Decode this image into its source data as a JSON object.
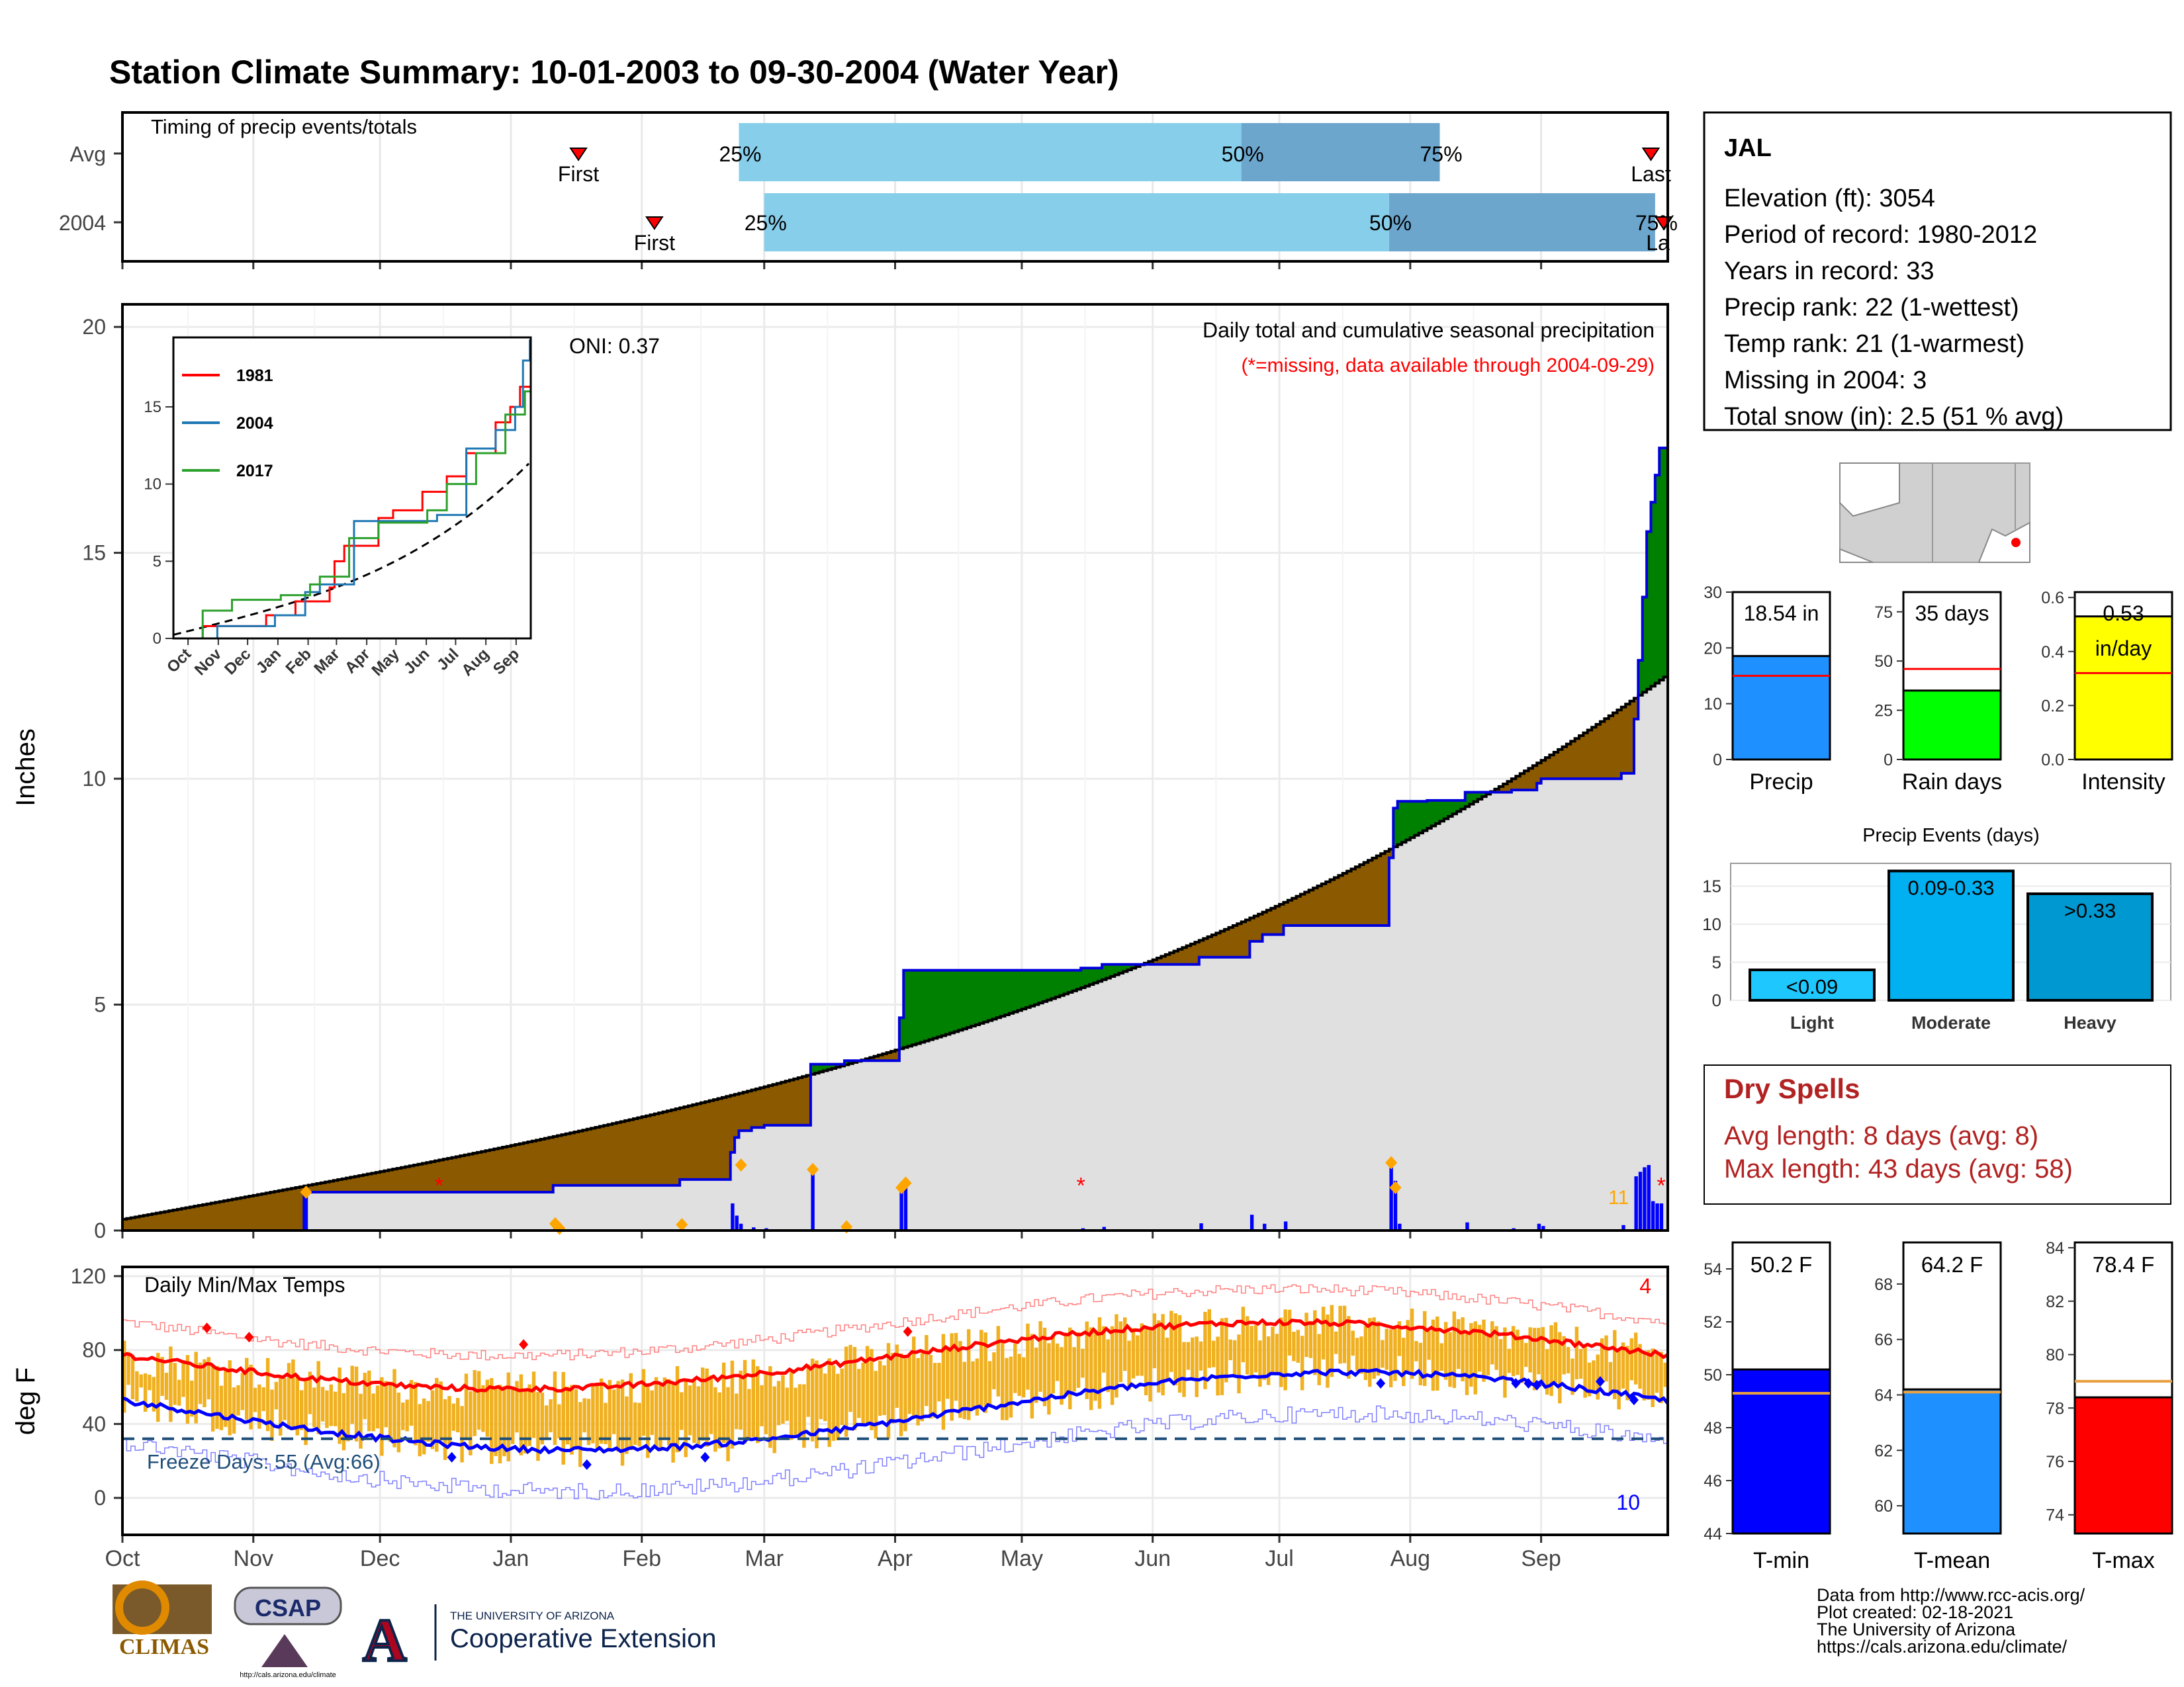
{
  "title": "Station Climate Summary: 10-01-2003 to 09-30-2004 (Water Year)",
  "colors": {
    "title": "#8b2500",
    "precip_cum": "#0000dd",
    "above_normal": "#008000",
    "below_normal": "#8b5a00",
    "normal_area": "#e0e0e0",
    "daily_bar": "#0000ff",
    "event_marker": "#ffa500",
    "temp_bar": "#f0b020",
    "tmax_line": "#ff0000",
    "tmin_line": "#0000ff",
    "freeze_line": "#1f4e79",
    "dry_spell_text": "#b22222"
  },
  "timing_panel": {
    "title": "Timing of precip events/totals",
    "rows": [
      {
        "label": "Avg",
        "first_label": "First",
        "last_label": "Last",
        "first_date": "2004-01-17",
        "last_date": "2004-09-27",
        "p25": "2004-02-24",
        "p50": "2004-06-22",
        "p75": "2004-08-08",
        "p25_label": "25%",
        "p50_label": "50%",
        "p75_label": "75%"
      },
      {
        "label": "2004",
        "first_label": "First",
        "last_label": "La",
        "first_date": "2004-02-04",
        "last_date": "2004-09-30",
        "p25": "2004-03-01",
        "p50": "2004-07-27",
        "p75": "2004-09-28",
        "p25_label": "25%",
        "p50_label": "50%",
        "p75_label": "75%"
      }
    ]
  },
  "precip_panel": {
    "ylabel": "Inches",
    "y_ticks": [
      0,
      5,
      10,
      15,
      20
    ],
    "ylim": [
      0,
      20.5
    ],
    "oni": "ONI: 0.37",
    "header": "Daily total and cumulative seasonal precipitation",
    "missing_note": "(*=missing, data available through 2004-09-29)",
    "missing_count": "11",
    "missing_marker": "*"
  },
  "inset": {
    "y_ticks": [
      0,
      5,
      10,
      15
    ],
    "x_labels": [
      "Oct",
      "Nov",
      "Dec",
      "Jan",
      "Feb",
      "Mar",
      "Apr",
      "May",
      "Jun",
      "Jul",
      "Aug",
      "Sep"
    ],
    "legend": [
      {
        "name": "1981",
        "color": "#ff0000"
      },
      {
        "name": "2004",
        "color": "#1f77b4"
      },
      {
        "name": "2017",
        "color": "#2ca02c"
      }
    ]
  },
  "temp_panel": {
    "title": "Daily Min/Max Temps",
    "ylabel": "deg F",
    "y_ticks": [
      0,
      40,
      80,
      120
    ],
    "ylim": [
      -20,
      125
    ],
    "freeze_label": "Freeze Days: 55 (Avg:66)",
    "freeze_line": 32,
    "record_high_count": "4",
    "record_low_count": "10"
  },
  "month_labels": [
    "Oct",
    "Nov",
    "Dec",
    "Jan",
    "Feb",
    "Mar",
    "Apr",
    "May",
    "Jun",
    "Jul",
    "Aug",
    "Sep"
  ],
  "station": {
    "name": "JAL",
    "lines": [
      "Elevation (ft): 3054",
      "Period of record: 1980-2012",
      "Years in record: 33",
      "Precip rank: 22 (1-wettest)",
      "Temp rank: 21 (1-warmest)",
      "Missing in 2004: 3",
      "Total snow (in): 2.5 (51 % avg)"
    ]
  },
  "mini_bars": [
    {
      "label": "Precip",
      "value": 18.54,
      "avg": 15.0,
      "ylim": [
        0,
        30
      ],
      "ticks": [
        "0",
        "10",
        "20",
        "30"
      ],
      "tick_values": [
        0,
        10,
        20,
        30
      ],
      "value_label": "18.54 in",
      "color": "#1e90ff"
    },
    {
      "label": "Rain days",
      "value": 35,
      "avg": 46,
      "ylim": [
        0,
        85
      ],
      "ticks": [
        "0",
        "25",
        "50",
        "75"
      ],
      "tick_values": [
        0,
        25,
        50,
        75
      ],
      "value_label": "35 days",
      "color": "#00ff00"
    },
    {
      "label": "Intensity",
      "value": 0.53,
      "avg": 0.32,
      "ylim": [
        0,
        0.62
      ],
      "ticks": [
        "0.0",
        "0.2",
        "0.4",
        "0.6"
      ],
      "tick_values": [
        0,
        0.2,
        0.4,
        0.6
      ],
      "value_label": "0.53",
      "value_label2": "in/day",
      "color": "#ffff00"
    }
  ],
  "precip_events": {
    "title": "Precip Events (days)",
    "ticks": [
      0,
      5,
      10,
      15
    ],
    "ylim": [
      0,
      18
    ],
    "bars": [
      {
        "label": "Light",
        "value": 4,
        "value_label": "<0.09",
        "color": "#1ec8ff"
      },
      {
        "label": "Moderate",
        "value": 17,
        "value_label": "0.09-0.33",
        "color": "#00b0f0"
      },
      {
        "label": "Heavy",
        "value": 14,
        "value_label": ">0.33",
        "color": "#0098d0"
      }
    ]
  },
  "dry_spells": {
    "title": "Dry Spells",
    "avg_line": "Avg length: 8 days (avg: 8)",
    "max_line": "Max length: 43 days (avg: 58)"
  },
  "temp_bars": [
    {
      "label": "T-min",
      "value": 50.2,
      "avg": 49.3,
      "ylim": [
        44,
        55
      ],
      "ticks": [
        44,
        46,
        48,
        50,
        52,
        54
      ],
      "value_label": "50.2 F",
      "color": "#0000ff"
    },
    {
      "label": "T-mean",
      "value": 64.2,
      "avg": 64.1,
      "ylim": [
        59,
        69.5
      ],
      "ticks": [
        60,
        62,
        64,
        66,
        68
      ],
      "value_label": "64.2 F",
      "color": "#1e90ff"
    },
    {
      "label": "T-max",
      "value": 78.4,
      "avg": 79.0,
      "ylim": [
        73.3,
        84.2
      ],
      "ticks": [
        74,
        76,
        78,
        80,
        82,
        84
      ],
      "value_label": "78.4 F",
      "color": "#ff0000"
    }
  ],
  "logos": {
    "climas": "CLIMAS",
    "csap": "CSAP",
    "csap_url": "http://cals.arizona.edu/climate",
    "ua_small": "THE UNIVERSITY OF ARIZONA",
    "ua_ext": "Cooperative Extension",
    "ua_letter": "A"
  },
  "footer": [
    "Data from http://www.rcc-acis.org/",
    "Plot created: 02-18-2021",
    "The University of Arizona",
    "https://cals.arizona.edu/climate/"
  ]
}
